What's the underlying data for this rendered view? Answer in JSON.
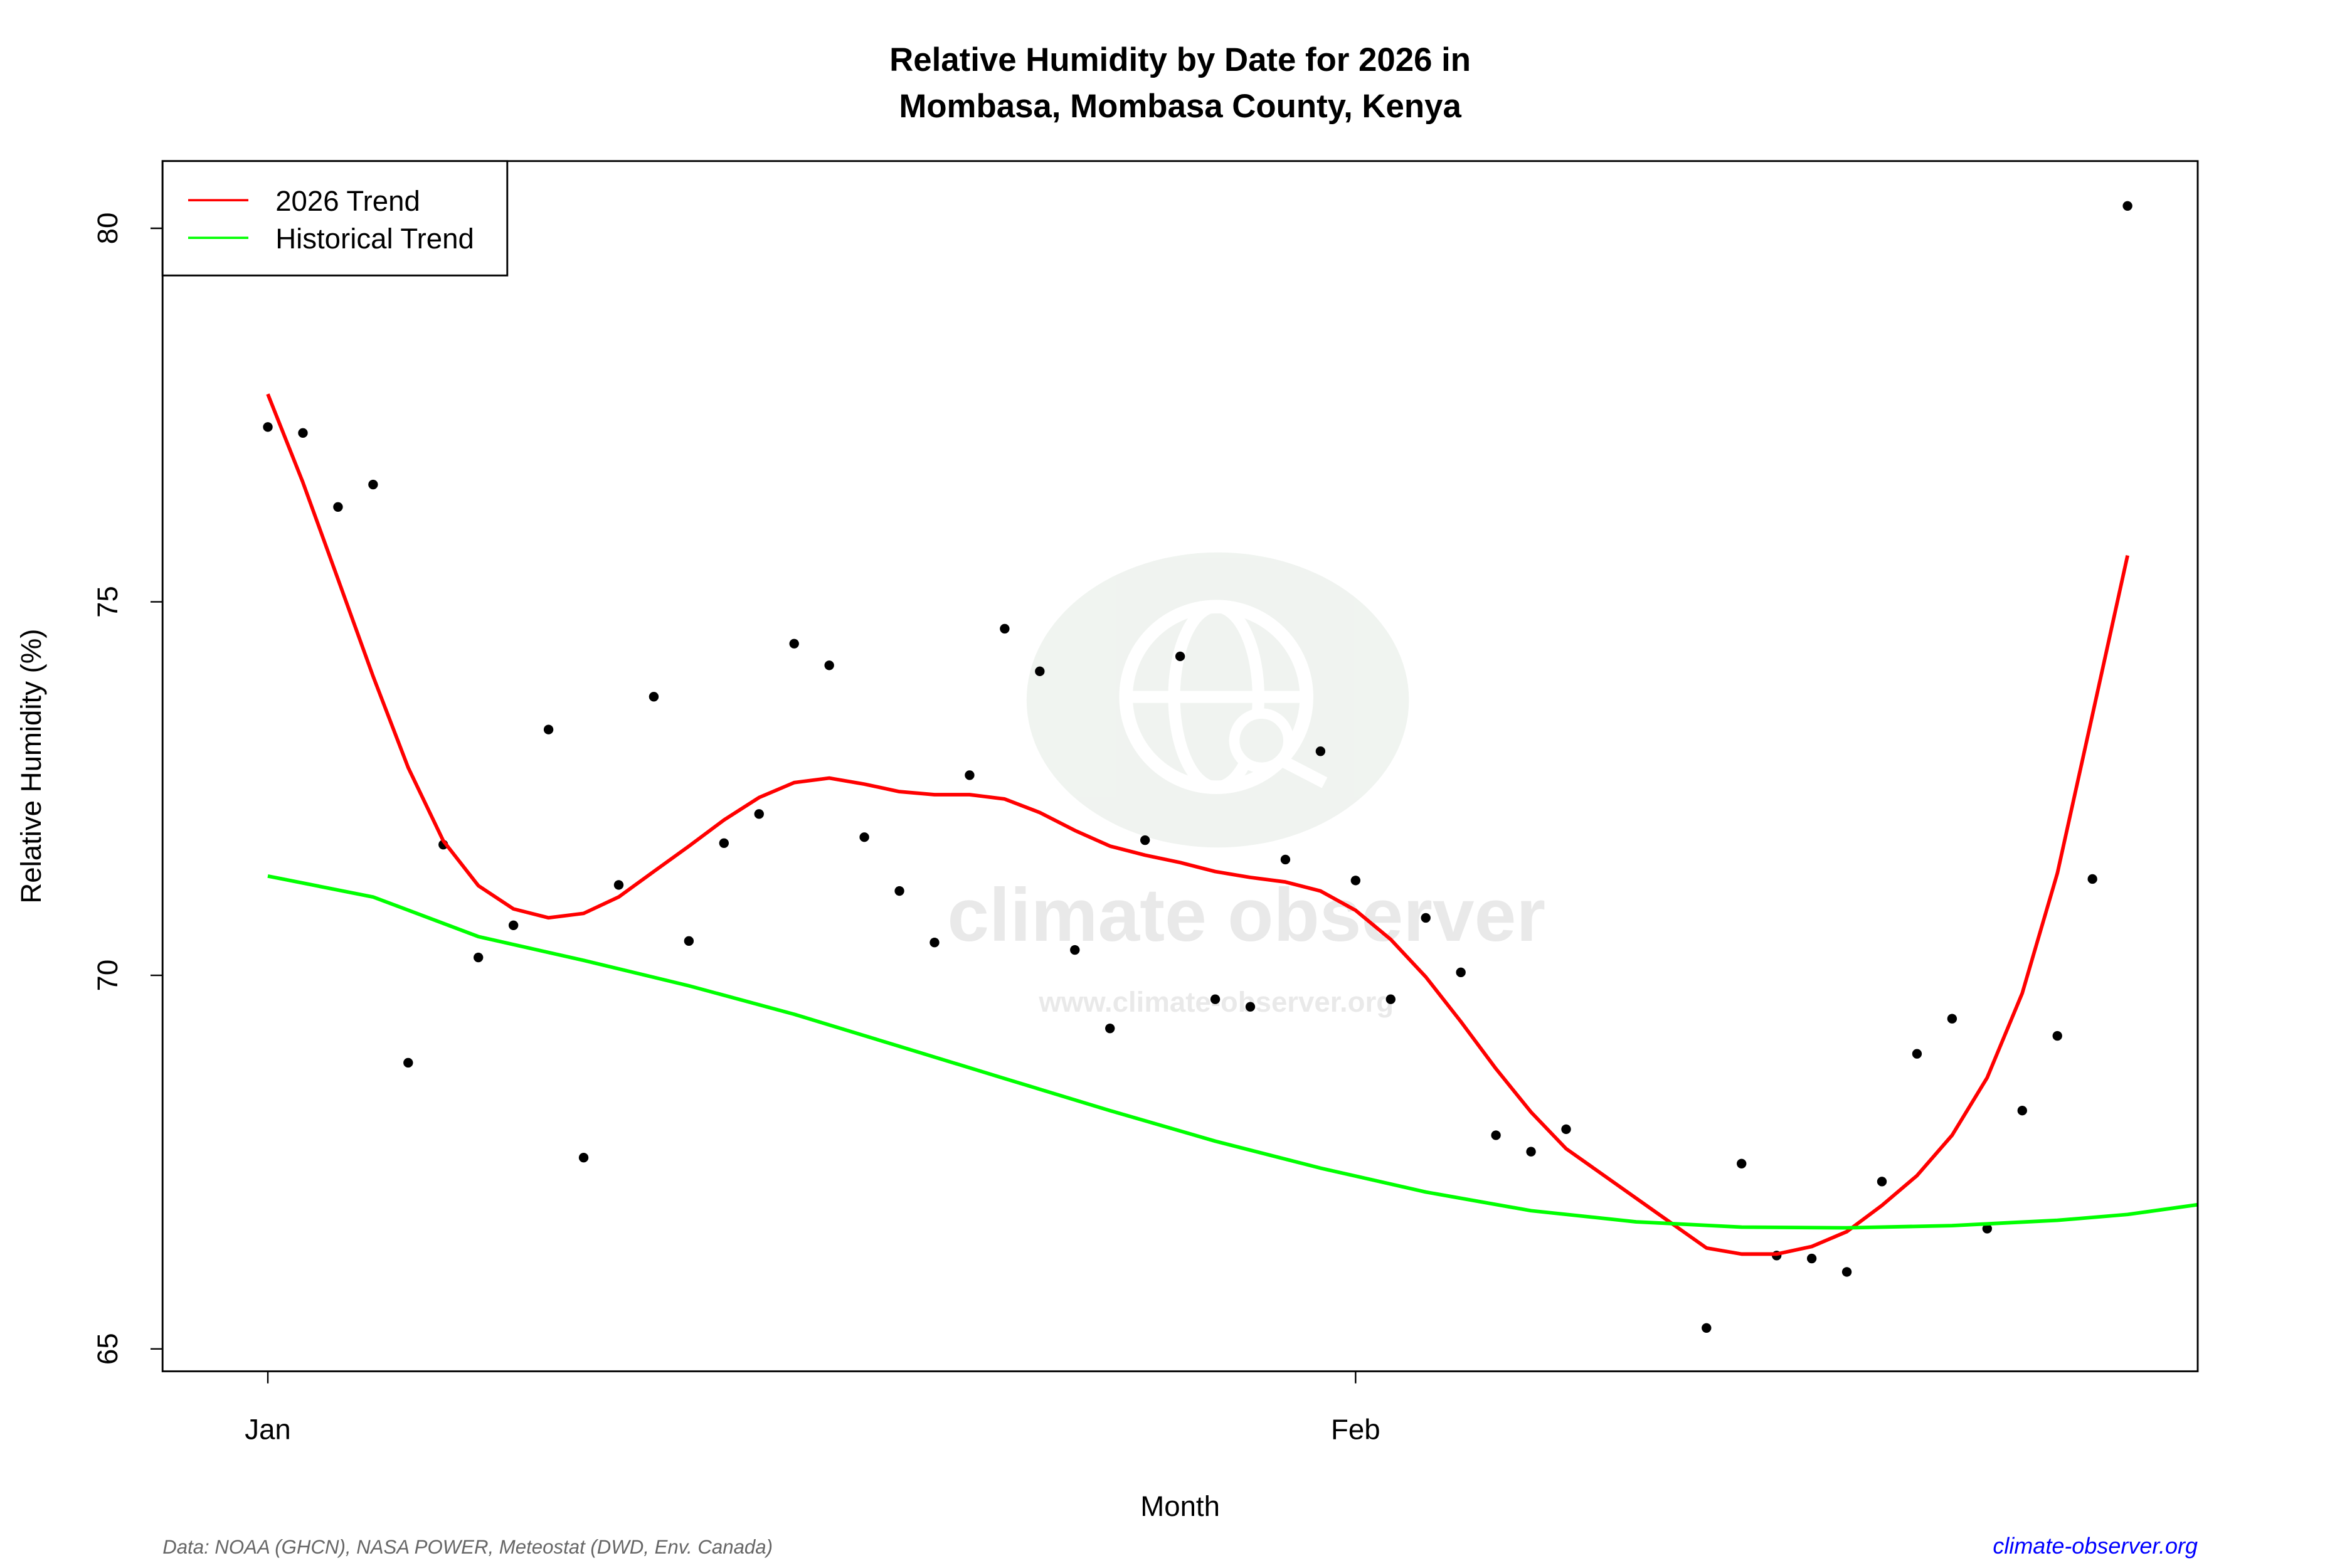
{
  "chart_data": {
    "type": "line",
    "title": "Relative Humidity by Date for 2026 in\nMombasa, Mombasa County, Kenya",
    "title_lines": [
      "Relative Humidity by Date for 2026 in",
      "Mombasa, Mombasa County, Kenya"
    ],
    "xlabel": "Month",
    "ylabel": "Relative Humidity (%)",
    "xlim": [
      "2025-12-29",
      "2026-02-25"
    ],
    "ylim": [
      64.7,
      80.9
    ],
    "x_ticks": [
      {
        "date": "2026-01-01",
        "label": "Jan"
      },
      {
        "date": "2026-02-01",
        "label": "Feb"
      }
    ],
    "y_ticks": [
      65,
      70,
      75,
      80
    ],
    "grid": false,
    "legend": {
      "position": "top-left",
      "entries": [
        {
          "label": "2026 Trend",
          "color": "#ff0000"
        },
        {
          "label": "Historical Trend",
          "color": "#00ff00"
        }
      ]
    },
    "series": [
      {
        "name": "2026",
        "kind": "scatter",
        "color": "#000000",
        "points": [
          [
            "2026-01-01",
            77.34
          ],
          [
            "2026-01-02",
            77.26
          ],
          [
            "2026-01-03",
            76.27
          ],
          [
            "2026-01-04",
            76.57
          ],
          [
            "2026-01-05",
            68.83
          ],
          [
            "2026-01-06",
            71.75
          ],
          [
            "2026-01-07",
            70.24
          ],
          [
            "2026-01-08",
            70.67
          ],
          [
            "2026-01-09",
            73.29
          ],
          [
            "2026-01-10",
            67.56
          ],
          [
            "2026-01-11",
            71.21
          ],
          [
            "2026-01-12",
            73.73
          ],
          [
            "2026-01-13",
            70.46
          ],
          [
            "2026-01-14",
            71.77
          ],
          [
            "2026-01-15",
            72.16
          ],
          [
            "2026-01-16",
            74.44
          ],
          [
            "2026-01-17",
            74.15
          ],
          [
            "2026-01-18",
            71.85
          ],
          [
            "2026-01-19",
            71.13
          ],
          [
            "2026-01-20",
            70.44
          ],
          [
            "2026-01-21",
            72.68
          ],
          [
            "2026-01-22",
            74.64
          ],
          [
            "2026-01-23",
            74.07
          ],
          [
            "2026-01-24",
            70.34
          ],
          [
            "2026-01-25",
            69.29
          ],
          [
            "2026-01-26",
            71.81
          ],
          [
            "2026-01-27",
            74.27
          ],
          [
            "2026-01-28",
            69.68
          ],
          [
            "2026-01-29",
            69.58
          ],
          [
            "2026-01-30",
            71.55
          ],
          [
            "2026-01-31",
            73.0
          ],
          [
            "2026-02-01",
            71.27
          ],
          [
            "2026-02-02",
            69.68
          ],
          [
            "2026-02-03",
            70.77
          ],
          [
            "2026-02-04",
            70.04
          ],
          [
            "2026-02-05",
            67.86
          ],
          [
            "2026-02-06",
            67.64
          ],
          [
            "2026-02-07",
            67.94
          ],
          [
            "2026-02-11",
            65.28
          ],
          [
            "2026-02-12",
            67.48
          ],
          [
            "2026-02-13",
            66.25
          ],
          [
            "2026-02-14",
            66.21
          ],
          [
            "2026-02-15",
            66.03
          ],
          [
            "2026-02-16",
            67.24
          ],
          [
            "2026-02-17",
            68.95
          ],
          [
            "2026-02-18",
            69.42
          ],
          [
            "2026-02-19",
            66.61
          ],
          [
            "2026-02-20",
            68.19
          ],
          [
            "2026-02-21",
            69.19
          ],
          [
            "2026-02-22",
            71.29
          ],
          [
            "2026-02-23",
            80.3
          ]
        ]
      },
      {
        "name": "2026 Trend",
        "kind": "line",
        "color": "#ff0000",
        "points": [
          [
            "2026-01-01",
            77.78
          ],
          [
            "2026-01-02",
            76.6
          ],
          [
            "2026-01-03",
            75.3
          ],
          [
            "2026-01-04",
            74.0
          ],
          [
            "2026-01-05",
            72.78
          ],
          [
            "2026-01-06",
            71.8
          ],
          [
            "2026-01-07",
            71.2
          ],
          [
            "2026-01-08",
            70.89
          ],
          [
            "2026-01-09",
            70.77
          ],
          [
            "2026-01-10",
            70.83
          ],
          [
            "2026-01-11",
            71.05
          ],
          [
            "2026-01-12",
            71.39
          ],
          [
            "2026-01-13",
            71.73
          ],
          [
            "2026-01-14",
            72.08
          ],
          [
            "2026-01-15",
            72.38
          ],
          [
            "2026-01-16",
            72.58
          ],
          [
            "2026-01-17",
            72.64
          ],
          [
            "2026-01-18",
            72.56
          ],
          [
            "2026-01-19",
            72.46
          ],
          [
            "2026-01-20",
            72.42
          ],
          [
            "2026-01-21",
            72.42
          ],
          [
            "2026-01-22",
            72.36
          ],
          [
            "2026-01-23",
            72.18
          ],
          [
            "2026-01-24",
            71.94
          ],
          [
            "2026-01-25",
            71.73
          ],
          [
            "2026-01-26",
            71.61
          ],
          [
            "2026-01-27",
            71.51
          ],
          [
            "2026-01-28",
            71.39
          ],
          [
            "2026-01-29",
            71.31
          ],
          [
            "2026-01-30",
            71.25
          ],
          [
            "2026-01-31",
            71.13
          ],
          [
            "2026-02-01",
            70.87
          ],
          [
            "2026-02-02",
            70.48
          ],
          [
            "2026-02-03",
            69.98
          ],
          [
            "2026-02-04",
            69.38
          ],
          [
            "2026-02-05",
            68.75
          ],
          [
            "2026-02-06",
            68.17
          ],
          [
            "2026-02-07",
            67.68
          ],
          [
            "2026-02-11",
            66.35
          ],
          [
            "2026-02-12",
            66.27
          ],
          [
            "2026-02-13",
            66.27
          ],
          [
            "2026-02-14",
            66.37
          ],
          [
            "2026-02-15",
            66.57
          ],
          [
            "2026-02-16",
            66.92
          ],
          [
            "2026-02-17",
            67.32
          ],
          [
            "2026-02-18",
            67.86
          ],
          [
            "2026-02-19",
            68.63
          ],
          [
            "2026-02-20",
            69.76
          ],
          [
            "2026-02-21",
            71.37
          ],
          [
            "2026-02-22",
            73.49
          ],
          [
            "2026-02-23",
            75.62
          ]
        ]
      },
      {
        "name": "Historical Trend",
        "kind": "line",
        "color": "#00ff00",
        "points": [
          [
            "2026-01-01",
            71.33
          ],
          [
            "2026-01-04",
            71.05
          ],
          [
            "2026-01-07",
            70.52
          ],
          [
            "2026-01-10",
            70.2
          ],
          [
            "2026-01-13",
            69.86
          ],
          [
            "2026-01-16",
            69.48
          ],
          [
            "2026-01-19",
            69.05
          ],
          [
            "2026-01-22",
            68.62
          ],
          [
            "2026-01-25",
            68.19
          ],
          [
            "2026-01-28",
            67.78
          ],
          [
            "2026-01-31",
            67.42
          ],
          [
            "2026-02-03",
            67.1
          ],
          [
            "2026-02-06",
            66.85
          ],
          [
            "2026-02-09",
            66.7
          ],
          [
            "2026-02-12",
            66.63
          ],
          [
            "2026-02-15",
            66.62
          ],
          [
            "2026-02-18",
            66.65
          ],
          [
            "2026-02-21",
            66.72
          ],
          [
            "2026-02-23",
            66.8
          ],
          [
            "2026-02-25",
            66.93
          ]
        ]
      }
    ]
  },
  "footer": {
    "source": "Data: NOAA (GHCN), NASA POWER, Meteostat (DWD, Env. Canada)",
    "site": "climate-observer.org",
    "site_color": "#0000ff"
  },
  "watermark": {
    "name": "climate observer",
    "url": "www.climate-observer.org"
  }
}
